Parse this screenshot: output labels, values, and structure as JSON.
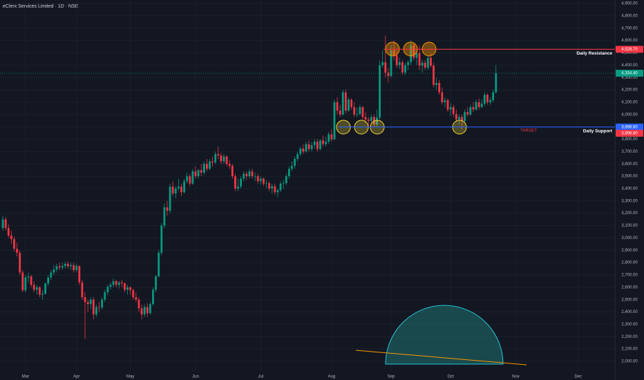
{
  "chart_data": {
    "type": "candlestick",
    "title": "eClerx Services Limited · 1D · NSE",
    "up_color": "#089981",
    "down_color": "#f23645",
    "ylim": [
      1916,
      4928
    ],
    "yticks": [
      {
        "value": 2000,
        "label": "2,000.00"
      },
      {
        "value": 2100,
        "label": "2,100.00"
      },
      {
        "value": 2200,
        "label": "2,200.00"
      },
      {
        "value": 2300,
        "label": "2,300.00"
      },
      {
        "value": 2400,
        "label": "2,400.00"
      },
      {
        "value": 2500,
        "label": "2,500.00"
      },
      {
        "value": 2600,
        "label": "2,600.00"
      },
      {
        "value": 2700,
        "label": "2,700.00"
      },
      {
        "value": 2800,
        "label": "2,800.00"
      },
      {
        "value": 2900,
        "label": "2,900.00"
      },
      {
        "value": 3000,
        "label": "3,000.00"
      },
      {
        "value": 3100,
        "label": "3,100.00"
      },
      {
        "value": 3200,
        "label": "3,200.00"
      },
      {
        "value": 3300,
        "label": "3,300.00"
      },
      {
        "value": 3400,
        "label": "3,400.00"
      },
      {
        "value": 3500,
        "label": "3,500.00"
      },
      {
        "value": 3600,
        "label": "3,600.00"
      },
      {
        "value": 3700,
        "label": "3,700.00"
      },
      {
        "value": 3800,
        "label": "3,800.00"
      },
      {
        "value": 3900,
        "label": "3,900.00"
      },
      {
        "value": 4000,
        "label": "4,000.00"
      },
      {
        "value": 4100,
        "label": "4,100.00"
      },
      {
        "value": 4200,
        "label": "4,200.00"
      },
      {
        "value": 4300,
        "label": "4,300.00"
      },
      {
        "value": 4400,
        "label": "4,400.00"
      },
      {
        "value": 4500,
        "label": "4,500.00"
      },
      {
        "value": 4600,
        "label": "4,600.00"
      },
      {
        "value": 4700,
        "label": "4,700.00"
      },
      {
        "value": 4800,
        "label": "4,800.00"
      },
      {
        "value": 4900,
        "label": "4,900.00"
      }
    ],
    "xlim": [
      -1,
      216
    ],
    "xticks": [
      {
        "value": 8,
        "label": "Mar"
      },
      {
        "value": 26,
        "label": "Apr"
      },
      {
        "value": 45,
        "label": "May"
      },
      {
        "value": 68,
        "label": "Jun"
      },
      {
        "value": 91,
        "label": "Jul"
      },
      {
        "value": 116,
        "label": "Aug"
      },
      {
        "value": 137,
        "label": "Sep"
      },
      {
        "value": 158,
        "label": "Oct"
      },
      {
        "value": 181,
        "label": "Nov"
      },
      {
        "value": 203,
        "label": "Dec"
      }
    ],
    "levels": [
      {
        "name": "Daily Resistance",
        "value": 4528.7,
        "label": "4,528.70",
        "color": "#f23645"
      },
      {
        "name": "Daily Support",
        "value": 3898.8,
        "label": "3,898.80",
        "color": "#2962ff"
      }
    ],
    "target": {
      "text": "TARGET",
      "value": 3898.8,
      "label": "3,898.80",
      "color": "#f23645"
    },
    "last_price": {
      "value": 4334.4,
      "label": "4,334.40",
      "color": "#089981"
    },
    "candles": [
      [
        3080,
        3180,
        3060,
        3150
      ],
      [
        3150,
        3170,
        3060,
        3080
      ],
      [
        3080,
        3110,
        3000,
        3020
      ],
      [
        3020,
        3060,
        2950,
        2990
      ],
      [
        2990,
        3010,
        2890,
        2912
      ],
      [
        2912,
        2960,
        2850,
        2880
      ],
      [
        2880,
        2900,
        2700,
        2720
      ],
      [
        2720,
        2740,
        2560,
        2576
      ],
      [
        2576,
        2700,
        2560,
        2680
      ],
      [
        2680,
        2720,
        2640,
        2688
      ],
      [
        2688,
        2700,
        2600,
        2620
      ],
      [
        2620,
        2650,
        2560,
        2580
      ],
      [
        2580,
        2620,
        2540,
        2600
      ],
      [
        2600,
        2610,
        2520,
        2540
      ],
      [
        2540,
        2580,
        2500,
        2548
      ],
      [
        2548,
        2640,
        2540,
        2630
      ],
      [
        2630,
        2700,
        2610,
        2680
      ],
      [
        2680,
        2740,
        2660,
        2720
      ],
      [
        2720,
        2780,
        2700,
        2744
      ],
      [
        2744,
        2790,
        2720,
        2770
      ],
      [
        2770,
        2800,
        2740,
        2760
      ],
      [
        2760,
        2800,
        2740,
        2772
      ],
      [
        2772,
        2810,
        2750,
        2790
      ],
      [
        2790,
        2810,
        2750,
        2770
      ],
      [
        2770,
        2800,
        2740,
        2780
      ],
      [
        2780,
        2800,
        2720,
        2740
      ],
      [
        2740,
        2790,
        2720,
        2772
      ],
      [
        2772,
        2780,
        2620,
        2640
      ],
      [
        2640,
        2660,
        2500,
        2520
      ],
      [
        2520,
        2560,
        2180,
        2480
      ],
      [
        2480,
        2500,
        2400,
        2464
      ],
      [
        2464,
        2520,
        2420,
        2500
      ],
      [
        2500,
        2520,
        2340,
        2380
      ],
      [
        2380,
        2460,
        2360,
        2440
      ],
      [
        2440,
        2480,
        2400,
        2436
      ],
      [
        2436,
        2520,
        2420,
        2500
      ],
      [
        2500,
        2580,
        2480,
        2560
      ],
      [
        2560,
        2620,
        2540,
        2604
      ],
      [
        2604,
        2640,
        2580,
        2620
      ],
      [
        2620,
        2670,
        2600,
        2650
      ],
      [
        2650,
        2660,
        2600,
        2620
      ],
      [
        2620,
        2650,
        2590,
        2640
      ],
      [
        2640,
        2660,
        2600,
        2632
      ],
      [
        2632,
        2640,
        2560,
        2580
      ],
      [
        2580,
        2620,
        2540,
        2600
      ],
      [
        2600,
        2610,
        2540,
        2576
      ],
      [
        2576,
        2590,
        2500,
        2520
      ],
      [
        2520,
        2560,
        2480,
        2500
      ],
      [
        2500,
        2520,
        2400,
        2430
      ],
      [
        2430,
        2460,
        2340,
        2380
      ],
      [
        2380,
        2460,
        2360,
        2440
      ],
      [
        2440,
        2470,
        2360,
        2390
      ],
      [
        2390,
        2480,
        2380,
        2464
      ],
      [
        2464,
        2600,
        2450,
        2580
      ],
      [
        2580,
        2700,
        2560,
        2688
      ],
      [
        2688,
        2900,
        2680,
        2880
      ],
      [
        2880,
        3120,
        2860,
        3100
      ],
      [
        3100,
        3280,
        3080,
        3248
      ],
      [
        3248,
        3300,
        3180,
        3220
      ],
      [
        3220,
        3440,
        3200,
        3416
      ],
      [
        3416,
        3460,
        3340,
        3360
      ],
      [
        3360,
        3420,
        3320,
        3400
      ],
      [
        3400,
        3480,
        3380,
        3416
      ],
      [
        3416,
        3440,
        3340,
        3370
      ],
      [
        3370,
        3480,
        3360,
        3460
      ],
      [
        3460,
        3530,
        3440,
        3500
      ],
      [
        3500,
        3520,
        3420,
        3440
      ],
      [
        3440,
        3560,
        3430,
        3540
      ],
      [
        3540,
        3580,
        3480,
        3500
      ],
      [
        3500,
        3560,
        3480,
        3550
      ],
      [
        3550,
        3600,
        3500,
        3528
      ],
      [
        3528,
        3620,
        3510,
        3600
      ],
      [
        3600,
        3640,
        3540,
        3560
      ],
      [
        3560,
        3640,
        3550,
        3620
      ],
      [
        3620,
        3660,
        3580,
        3612
      ],
      [
        3612,
        3700,
        3600,
        3680
      ],
      [
        3680,
        3740,
        3640,
        3668
      ],
      [
        3668,
        3690,
        3600,
        3620
      ],
      [
        3620,
        3680,
        3600,
        3660
      ],
      [
        3660,
        3670,
        3580,
        3600
      ],
      [
        3600,
        3630,
        3560,
        3584
      ],
      [
        3584,
        3600,
        3480,
        3500
      ],
      [
        3500,
        3520,
        3380,
        3400
      ],
      [
        3400,
        3480,
        3380,
        3416
      ],
      [
        3416,
        3500,
        3400,
        3480
      ],
      [
        3480,
        3540,
        3460,
        3520
      ],
      [
        3520,
        3540,
        3470,
        3500
      ],
      [
        3500,
        3560,
        3480,
        3540
      ],
      [
        3540,
        3560,
        3480,
        3500
      ],
      [
        3500,
        3530,
        3460,
        3500
      ],
      [
        3500,
        3520,
        3440,
        3460
      ],
      [
        3460,
        3500,
        3430,
        3480
      ],
      [
        3480,
        3490,
        3420,
        3440
      ],
      [
        3440,
        3470,
        3400,
        3444
      ],
      [
        3444,
        3460,
        3380,
        3400
      ],
      [
        3400,
        3440,
        3360,
        3420
      ],
      [
        3420,
        3440,
        3350,
        3370
      ],
      [
        3370,
        3400,
        3330,
        3388
      ],
      [
        3388,
        3460,
        3370,
        3440
      ],
      [
        3440,
        3470,
        3400,
        3444
      ],
      [
        3444,
        3520,
        3430,
        3500
      ],
      [
        3500,
        3580,
        3480,
        3560
      ],
      [
        3560,
        3620,
        3540,
        3584
      ],
      [
        3584,
        3660,
        3560,
        3640
      ],
      [
        3640,
        3700,
        3620,
        3680
      ],
      [
        3680,
        3740,
        3660,
        3724
      ],
      [
        3724,
        3760,
        3680,
        3700
      ],
      [
        3700,
        3780,
        3690,
        3760
      ],
      [
        3760,
        3790,
        3700,
        3720
      ],
      [
        3720,
        3780,
        3700,
        3752
      ],
      [
        3752,
        3800,
        3720,
        3780
      ],
      [
        3780,
        3800,
        3700,
        3720
      ],
      [
        3720,
        3800,
        3710,
        3790
      ],
      [
        3790,
        3830,
        3740,
        3760
      ],
      [
        3760,
        3820,
        3740,
        3780
      ],
      [
        3780,
        3860,
        3760,
        3840
      ],
      [
        3840,
        3880,
        3780,
        3800
      ],
      [
        3800,
        4120,
        3790,
        4100
      ],
      [
        4100,
        4140,
        4000,
        4032
      ],
      [
        4032,
        4080,
        3980,
        4000
      ],
      [
        4000,
        4200,
        3990,
        4180
      ],
      [
        4180,
        4200,
        4010,
        4032
      ],
      [
        4032,
        4140,
        4020,
        4120
      ],
      [
        4120,
        4130,
        4040,
        4060
      ],
      [
        4060,
        4100,
        3980,
        4000
      ],
      [
        4000,
        4060,
        3980,
        4004
      ],
      [
        4004,
        4080,
        3990,
        4060
      ],
      [
        4060,
        4070,
        3960,
        3980
      ],
      [
        3980,
        4020,
        3930,
        3960
      ],
      [
        3960,
        3980,
        3900,
        3948
      ],
      [
        3948,
        4000,
        3920,
        3980
      ],
      [
        3980,
        4000,
        3900,
        3920
      ],
      [
        3920,
        4040,
        3900,
        3976
      ],
      [
        3976,
        4440,
        3960,
        4400
      ],
      [
        4400,
        4520,
        4380,
        4424
      ],
      [
        4424,
        4640,
        4300,
        4340
      ],
      [
        4340,
        4380,
        4260,
        4312
      ],
      [
        4312,
        4560,
        4300,
        4520
      ],
      [
        4520,
        4600,
        4440,
        4480
      ],
      [
        4480,
        4520,
        4380,
        4400
      ],
      [
        4400,
        4460,
        4370,
        4424
      ],
      [
        4424,
        4440,
        4320,
        4340
      ],
      [
        4340,
        4420,
        4320,
        4400
      ],
      [
        4400,
        4440,
        4360,
        4424
      ],
      [
        4424,
        4600,
        4400,
        4560
      ],
      [
        4560,
        4580,
        4440,
        4460
      ],
      [
        4460,
        4520,
        4400,
        4500
      ],
      [
        4500,
        4560,
        4360,
        4396
      ],
      [
        4396,
        4440,
        4340,
        4420
      ],
      [
        4420,
        4440,
        4360,
        4380
      ],
      [
        4380,
        4480,
        4360,
        4460
      ],
      [
        4460,
        4500,
        4380,
        4396
      ],
      [
        4396,
        4420,
        4220,
        4240
      ],
      [
        4240,
        4300,
        4200,
        4256
      ],
      [
        4256,
        4280,
        4160,
        4180
      ],
      [
        4180,
        4220,
        4080,
        4100
      ],
      [
        4100,
        4140,
        4060,
        4116
      ],
      [
        4116,
        4130,
        4020,
        4040
      ],
      [
        4040,
        4090,
        3990,
        4060
      ],
      [
        4060,
        4080,
        3980,
        4004
      ],
      [
        4004,
        4040,
        3940,
        3960
      ],
      [
        3960,
        4000,
        3920,
        3980
      ],
      [
        3980,
        4000,
        3880,
        3948
      ],
      [
        3948,
        4040,
        3930,
        4020
      ],
      [
        4020,
        4060,
        3980,
        4000
      ],
      [
        4000,
        4080,
        3990,
        4060
      ],
      [
        4060,
        4100,
        4020,
        4040
      ],
      [
        4040,
        4120,
        4030,
        4100
      ],
      [
        4100,
        4130,
        4040,
        4060
      ],
      [
        4060,
        4120,
        4050,
        4088
      ],
      [
        4088,
        4180,
        4070,
        4160
      ],
      [
        4160,
        4170,
        4080,
        4100
      ],
      [
        4100,
        4140,
        4080,
        4116
      ],
      [
        4116,
        4200,
        4100,
        4180
      ],
      [
        4180,
        4400,
        4170,
        4334.4
      ]
    ]
  }
}
